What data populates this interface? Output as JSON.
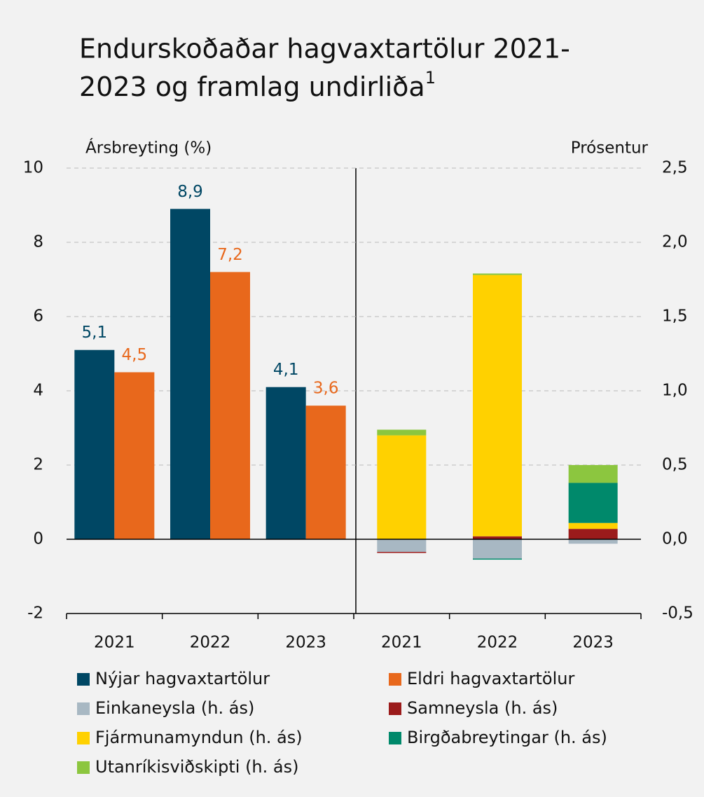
{
  "chart_data": {
    "type": "bar",
    "title": [
      "Endurskoðaðar hagvaxtartölur 2021-",
      "2023 og framlag undirliða"
    ],
    "title_footnote": "1",
    "ylabel": "Ársbreyting (%)",
    "y2label": "Prósentur",
    "categories": [
      "2021",
      "2022",
      "2023",
      "2021",
      "2022",
      "2023"
    ],
    "ylim": [
      -2,
      10
    ],
    "yticks": [
      -2,
      0,
      2,
      4,
      6,
      8,
      10
    ],
    "y2lim": [
      -0.5,
      2.5
    ],
    "y2ticks": [
      {
        "value": -0.5,
        "label": "-0,5"
      },
      {
        "value": 0,
        "label": "0,0"
      },
      {
        "value": 0.5,
        "label": "0,5"
      },
      {
        "value": 1,
        "label": "1,0"
      },
      {
        "value": 1.5,
        "label": "1,5"
      },
      {
        "value": 2,
        "label": "2,0"
      },
      {
        "value": 2.5,
        "label": "2,5"
      }
    ],
    "grid": true,
    "series": [
      {
        "name": "Nýjar hagvaxtartölur",
        "color": "#004764",
        "values": [
          5.1,
          8.9,
          4.1,
          null,
          null,
          null
        ],
        "value_labels": [
          "5,1",
          "8,9",
          "4,1",
          null,
          null,
          null
        ]
      },
      {
        "name": "Eldri hagvaxtartölur",
        "color": "#e8681c",
        "values": [
          4.5,
          7.2,
          3.6,
          null,
          null,
          null
        ],
        "value_labels": [
          "4,5",
          "7,2",
          "3,6",
          null,
          null,
          null
        ]
      },
      {
        "name": "Einkaneysla (h. ás)",
        "color": "#a8b8c3",
        "axis": "y2",
        "values": [
          null,
          null,
          null,
          -0.085,
          -0.13,
          -0.03
        ]
      },
      {
        "name": "Samneysla (h. ás)",
        "color": "#9b1b1b",
        "axis": "y2",
        "values": [
          null,
          null,
          null,
          -0.005,
          0.02,
          0.07
        ]
      },
      {
        "name": "Fjármunamyndun (h. ás)",
        "color": "#ffd100",
        "axis": "y2",
        "values": [
          null,
          null,
          null,
          0.7,
          1.76,
          0.04
        ]
      },
      {
        "name": "Birgðabreytingar (h. ás)",
        "color": "#00896b",
        "axis": "y2",
        "values": [
          null,
          null,
          null,
          0,
          -0.005,
          0.27
        ]
      },
      {
        "name": "Utanríkisviðskipti (h. ás)",
        "color": "#8cc63f",
        "axis": "y2",
        "values": [
          null,
          null,
          null,
          0.038,
          0.01,
          0.12
        ]
      }
    ]
  }
}
